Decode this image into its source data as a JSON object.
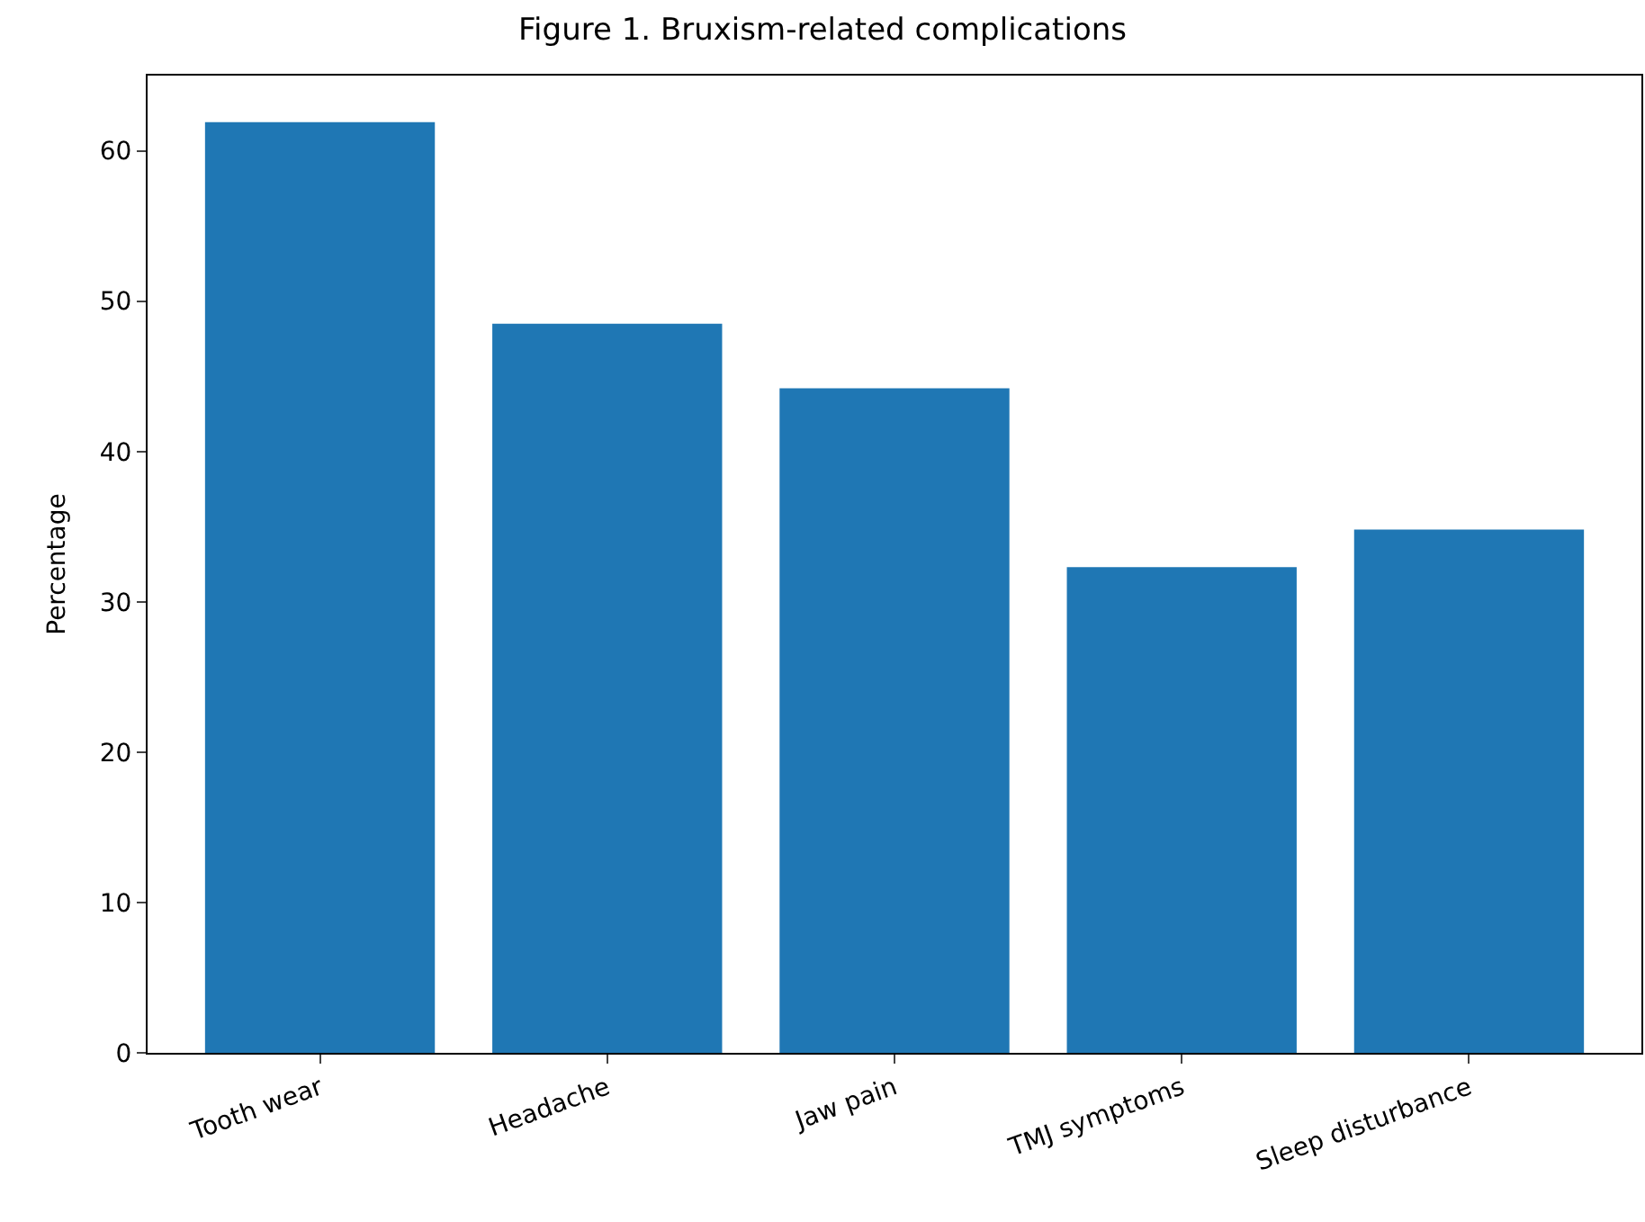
{
  "chart_data": {
    "type": "bar",
    "title": "Figure 1. Bruxism-related complications",
    "ylabel": "Percentage",
    "categories": [
      "Tooth wear",
      "Headache",
      "Jaw pain",
      "TMJ symptoms",
      "Sleep disturbance"
    ],
    "values": [
      61.9,
      48.5,
      44.2,
      32.3,
      34.8
    ],
    "color": "#1f77b4",
    "ylim": [
      0,
      65
    ],
    "yticks": [
      0,
      10,
      20,
      30,
      40,
      50,
      60
    ],
    "grid": false
  }
}
